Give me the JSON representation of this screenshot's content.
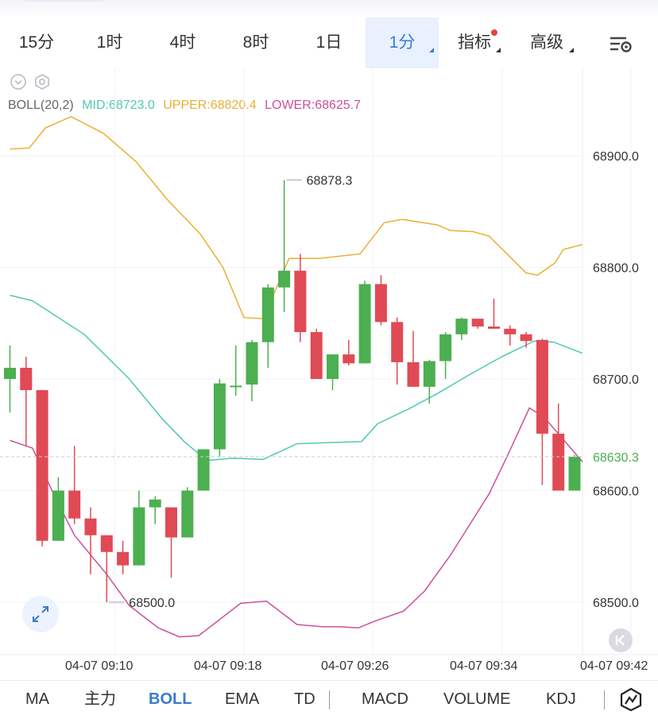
{
  "timeframe_tabs": [
    {
      "label": "15分",
      "active": false
    },
    {
      "label": "1时",
      "active": false
    },
    {
      "label": "4时",
      "active": false
    },
    {
      "label": "8时",
      "active": false
    },
    {
      "label": "1日",
      "active": false
    },
    {
      "label": "1分",
      "active": true
    }
  ],
  "menu_tabs": [
    {
      "label": "指标",
      "has_dot": true
    },
    {
      "label": "高级",
      "has_dot": false
    }
  ],
  "icons": {
    "settings": "list-settings-icon",
    "collapse": "chevron-down-circle-icon",
    "indicator_settings": "hexagon-gear-icon",
    "expand": "expand-arrows-icon",
    "back": "skip-back-icon",
    "chart_type": "line-chart-icon"
  },
  "boll_legend": {
    "name": "BOLL(20,2)",
    "mid": "MID:68723.0",
    "upper": "UPPER:68820.4",
    "lower": "LOWER:68625.7"
  },
  "price_labels": {
    "high": "68878.3",
    "low": "68500.0",
    "last": "68630.3"
  },
  "time_labels": [
    "04-07 09:10",
    "04-07 09:18",
    "04-07 09:26",
    "04-07 09:34",
    "04-07 09:42"
  ],
  "bottom_tabs": [
    {
      "label": "MA",
      "active": false
    },
    {
      "label": "主力",
      "active": false
    },
    {
      "label": "BOLL",
      "active": true
    },
    {
      "label": "EMA",
      "active": false
    },
    {
      "label": "TD",
      "active": false
    },
    {
      "label": "MACD",
      "active": false
    },
    {
      "label": "VOLUME",
      "active": false
    },
    {
      "label": "KDJ",
      "active": false
    }
  ],
  "colors": {
    "up": "#4caf50",
    "down": "#e04a55",
    "mid": "#4fc9b0",
    "upper": "#e8b135",
    "lower": "#cc4f9c",
    "accent": "#3a7bd5",
    "last_price_text": "#4caf50"
  },
  "chart_data": {
    "type": "candlestick",
    "y_axis": {
      "range": [
        68450,
        68970
      ],
      "ticks": [
        68900.0,
        68800.0,
        68700.0,
        68600.0,
        68500.0
      ],
      "tick_labels": [
        "68900.0",
        "68800.0",
        "68700.0",
        "68600.0",
        "68500.0"
      ]
    },
    "x_ticks": [
      {
        "label": "04-07 09:10",
        "index": 6.5
      },
      {
        "label": "04-07 09:18",
        "index": 14.5
      },
      {
        "label": "04-07 09:26",
        "index": 22.5
      },
      {
        "label": "04-07 09:34",
        "index": 30.5
      },
      {
        "label": "04-07 09:42",
        "index": 38.5
      }
    ],
    "candles": [
      {
        "o": 68700,
        "h": 68730,
        "l": 68670,
        "c": 68710
      },
      {
        "o": 68710,
        "h": 68720,
        "l": 68640,
        "c": 68690
      },
      {
        "o": 68690,
        "h": 68690,
        "l": 68550,
        "c": 68555
      },
      {
        "o": 68555,
        "h": 68612,
        "l": 68555,
        "c": 68600
      },
      {
        "o": 68600,
        "h": 68640,
        "l": 68570,
        "c": 68575
      },
      {
        "o": 68575,
        "h": 68585,
        "l": 68525,
        "c": 68560
      },
      {
        "o": 68560,
        "h": 68560,
        "l": 68500,
        "c": 68545
      },
      {
        "o": 68545,
        "h": 68555,
        "l": 68525,
        "c": 68533
      },
      {
        "o": 68533,
        "h": 68600,
        "l": 68533,
        "c": 68585
      },
      {
        "o": 68585,
        "h": 68595,
        "l": 68570,
        "c": 68592
      },
      {
        "o": 68585,
        "h": 68585,
        "l": 68522,
        "c": 68558
      },
      {
        "o": 68558,
        "h": 68603,
        "l": 68558,
        "c": 68600
      },
      {
        "o": 68600,
        "h": 68637,
        "l": 68600,
        "c": 68637
      },
      {
        "o": 68637,
        "h": 68700,
        "l": 68630,
        "c": 68696
      },
      {
        "o": 68694,
        "h": 68730,
        "l": 68685,
        "c": 68694
      },
      {
        "o": 68695,
        "h": 68735,
        "l": 68680,
        "c": 68733
      },
      {
        "o": 68733,
        "h": 68785,
        "l": 68710,
        "c": 68782
      },
      {
        "o": 68782,
        "h": 68878.3,
        "l": 68760,
        "c": 68797
      },
      {
        "o": 68797,
        "h": 68812,
        "l": 68733,
        "c": 68742
      },
      {
        "o": 68742,
        "h": 68745,
        "l": 68700,
        "c": 68700
      },
      {
        "o": 68700,
        "h": 68722,
        "l": 68690,
        "c": 68722
      },
      {
        "o": 68722,
        "h": 68735,
        "l": 68712,
        "c": 68714
      },
      {
        "o": 68714,
        "h": 68788,
        "l": 68714,
        "c": 68785
      },
      {
        "o": 68785,
        "h": 68793,
        "l": 68748,
        "c": 68751
      },
      {
        "o": 68751,
        "h": 68755,
        "l": 68695,
        "c": 68715
      },
      {
        "o": 68715,
        "h": 68743,
        "l": 68693,
        "c": 68693
      },
      {
        "o": 68693,
        "h": 68717,
        "l": 68678,
        "c": 68716
      },
      {
        "o": 68716,
        "h": 68742,
        "l": 68700,
        "c": 68740
      },
      {
        "o": 68740,
        "h": 68755,
        "l": 68735,
        "c": 68754
      },
      {
        "o": 68754,
        "h": 68754,
        "l": 68745,
        "c": 68747
      },
      {
        "o": 68747,
        "h": 68772,
        "l": 68745,
        "c": 68745
      },
      {
        "o": 68745,
        "h": 68748,
        "l": 68730,
        "c": 68740
      },
      {
        "o": 68740,
        "h": 68742,
        "l": 68728,
        "c": 68734
      },
      {
        "o": 68735,
        "h": 68736,
        "l": 68605,
        "c": 68651
      },
      {
        "o": 68651,
        "h": 68678,
        "l": 68600,
        "c": 68600
      },
      {
        "o": 68600,
        "h": 68632,
        "l": 68600,
        "c": 68630.3
      }
    ],
    "bollinger": {
      "upper": [
        [
          0,
          68906
        ],
        [
          1.2,
          68907
        ],
        [
          2.2,
          68925
        ],
        [
          3.8,
          68935
        ],
        [
          5.8,
          68920
        ],
        [
          7.8,
          68895
        ],
        [
          9.8,
          68860
        ],
        [
          11.8,
          68830
        ],
        [
          13.2,
          68800
        ],
        [
          14.5,
          68755
        ],
        [
          15.7,
          68754
        ],
        [
          17.3,
          68808
        ],
        [
          19.2,
          68808
        ],
        [
          21.7,
          68812
        ],
        [
          23.2,
          68840
        ],
        [
          24.3,
          68843
        ],
        [
          26.5,
          68838
        ],
        [
          27.3,
          68833
        ],
        [
          28.7,
          68832
        ],
        [
          29.7,
          68828
        ],
        [
          32.0,
          68795
        ],
        [
          32.7,
          68793
        ],
        [
          33.8,
          68804
        ],
        [
          34.3,
          68816
        ],
        [
          35.5,
          68820.4
        ]
      ],
      "mid": [
        [
          0,
          68775
        ],
        [
          1.4,
          68770
        ],
        [
          4.6,
          68740
        ],
        [
          7.4,
          68700
        ],
        [
          9.4,
          68665
        ],
        [
          10.8,
          68644
        ],
        [
          12.2,
          68627
        ],
        [
          13.8,
          68629
        ],
        [
          15.7,
          68628
        ],
        [
          17.8,
          68642
        ],
        [
          21.8,
          68644
        ],
        [
          22.8,
          68660
        ],
        [
          24.7,
          68673
        ],
        [
          26.5,
          68687
        ],
        [
          28.5,
          68704
        ],
        [
          30.5,
          68720
        ],
        [
          32.5,
          68734
        ],
        [
          33.7,
          68733
        ],
        [
          35.5,
          68723
        ]
      ],
      "lower": [
        [
          0,
          68645
        ],
        [
          1.4,
          68638
        ],
        [
          2.8,
          68594
        ],
        [
          4.0,
          68560
        ],
        [
          6.0,
          68525
        ],
        [
          7.4,
          68497
        ],
        [
          9.2,
          68477
        ],
        [
          10.5,
          68469
        ],
        [
          11.7,
          68470
        ],
        [
          14.3,
          68499
        ],
        [
          15.9,
          68501
        ],
        [
          17.8,
          68480
        ],
        [
          19.4,
          68478
        ],
        [
          20.4,
          68478
        ],
        [
          21.6,
          68477
        ],
        [
          22.6,
          68483
        ],
        [
          24.4,
          68492
        ],
        [
          25.7,
          68510
        ],
        [
          27.3,
          68542
        ],
        [
          29.7,
          68597
        ],
        [
          30.8,
          68630
        ],
        [
          32.2,
          68674
        ],
        [
          33.1,
          68666
        ],
        [
          35.5,
          68625.7
        ]
      ]
    }
  }
}
